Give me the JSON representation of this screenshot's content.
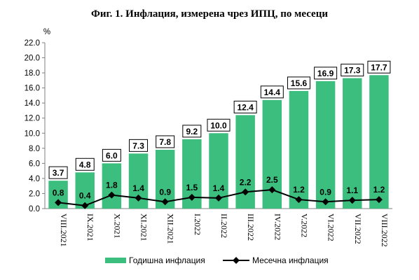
{
  "chart_data": {
    "type": "bar",
    "title": "Фиг. 1. Инфлация, измерена чрез ИПЦ, по месеци",
    "ylabel": "%",
    "ylim": [
      0,
      22
    ],
    "yticks": [
      "0.0",
      "2.0",
      "4.0",
      "6.0",
      "8.0",
      "10.0",
      "12.0",
      "14.0",
      "16.0",
      "18.0",
      "20.0",
      "22.0"
    ],
    "categories": [
      "VIII.2021",
      "IX.2021",
      "X.2021",
      "XI.2021",
      "XII.2021",
      "I.2022",
      "II.2022",
      "III.2022",
      "IV.2022",
      "V.2022",
      "VI.2022",
      "VII.2022",
      "VIII.2022"
    ],
    "series": [
      {
        "name": "Годишна инфлация",
        "type": "bar",
        "color": "#3cbf7e",
        "values": [
          3.7,
          4.8,
          6.0,
          7.3,
          7.8,
          9.2,
          10.0,
          12.4,
          14.4,
          15.6,
          16.9,
          17.3,
          17.7
        ],
        "labels": [
          "3.7",
          "4.8",
          "6.0",
          "7.3",
          "7.8",
          "9.2",
          "10.0",
          "12.4",
          "14.4",
          "15.6",
          "16.9",
          "17.3",
          "17.7"
        ]
      },
      {
        "name": "Месечна инфлация",
        "type": "line",
        "color": "#000000",
        "values": [
          0.8,
          0.4,
          1.8,
          1.4,
          0.9,
          1.5,
          1.4,
          2.2,
          2.5,
          1.2,
          0.9,
          1.1,
          1.2
        ],
        "labels": [
          "0.8",
          "0.4",
          "1.8",
          "1.4",
          "0.9",
          "1.5",
          "1.4",
          "2.2",
          "2.5",
          "1.2",
          "0.9",
          "1.1",
          "1.2"
        ]
      }
    ],
    "grid": false,
    "legend": "bottom"
  }
}
